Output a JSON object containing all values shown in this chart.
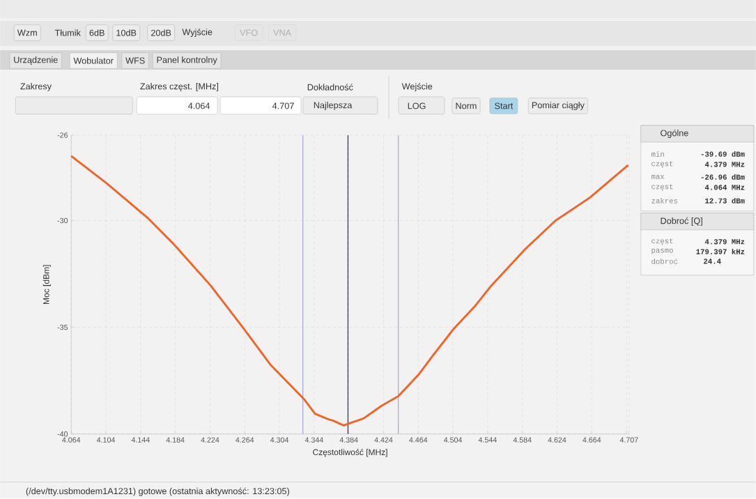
{
  "chart_data": {
    "type": "line",
    "xlabel": "Częstotliwość [MHz]",
    "ylabel": "Moc [dBm]",
    "x": [
      4.064,
      4.105,
      4.153,
      4.182,
      4.225,
      4.262,
      4.294,
      4.332,
      4.345,
      4.361,
      4.366,
      4.378,
      4.39,
      4.401,
      4.422,
      4.441,
      4.465,
      4.481,
      4.505,
      4.529,
      4.548,
      4.588,
      4.622,
      4.662,
      4.706
    ],
    "values": [
      -26.98,
      -28.26,
      -29.91,
      -31.1,
      -33.06,
      -35.02,
      -36.77,
      -38.35,
      -39.05,
      -39.32,
      -39.38,
      -39.6,
      -39.43,
      -39.27,
      -38.67,
      -38.23,
      -37.19,
      -36.32,
      -35.07,
      -34.03,
      -33.06,
      -31.31,
      -30.01,
      -28.92,
      -27.4
    ],
    "color": "#f06428",
    "xlim": [
      4.064,
      4.707
    ],
    "ylim": [
      -40,
      -26
    ],
    "xticks": [
      4.064,
      4.104,
      4.144,
      4.184,
      4.224,
      4.264,
      4.304,
      4.344,
      4.384,
      4.424,
      4.464,
      4.504,
      4.544,
      4.584,
      4.624,
      4.664,
      {
        "value": 4.704,
        "label": null
      },
      4.707
    ],
    "yticks": [
      -40,
      -35,
      -30,
      -26
    ],
    "grid": true,
    "ref_lines": [
      {
        "axis": "x",
        "value": 4.331,
        "color": "#ababdb"
      },
      {
        "axis": "x",
        "value": 4.383,
        "color": "#3c3c8c"
      },
      {
        "axis": "x",
        "value": 4.441,
        "color": "#ababdb"
      }
    ],
    "annotations": [
      "Wzm",
      "Tłumik",
      "6dB",
      "10dB",
      "20dB",
      "Wyjście",
      "VFO",
      "VNA",
      "Urządzenie",
      "Wobulator",
      "WFS",
      "Panel kontrolny",
      "Zakresy",
      "Zakres częst. [MHz]",
      "4.064",
      "4.707",
      "Dokładność",
      "Najlepsza",
      "Wejście",
      "LOG",
      "Norm",
      "Start",
      "Pomiar ciągły",
      "Ogólne",
      "min",
      "-39.69 dBm",
      "częst",
      "4.379 MHz",
      "max",
      "-26.96 dBm",
      "częst",
      "4.064 MHz",
      "zakres",
      "12.73 dBm",
      "Dobroć [Q]",
      "częst",
      "4.379 MHz",
      "pasmo",
      "179.397 kHz",
      "dobroć",
      "24.4",
      "(/dev/tty.usbmodem1A1231) gotowe (ostatnia aktywność: 13:23:05)"
    ]
  }
}
